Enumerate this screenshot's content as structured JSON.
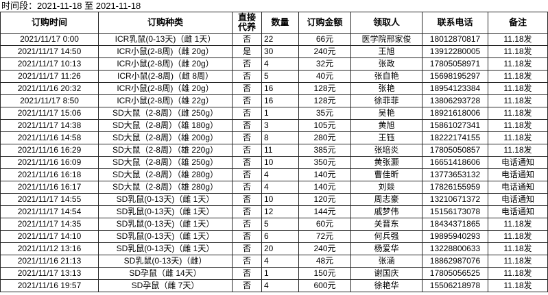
{
  "title": "时间段：2021-11-18 至 2021-11-18",
  "columns": [
    "订购时间",
    "订购种类",
    "直接代养",
    "数量",
    "订购金额",
    "领取人",
    "联系电话",
    "备注"
  ],
  "header_direct_line1": "直接",
  "header_direct_line2": "代养",
  "rows": [
    [
      "2021/11/17 0:00",
      "ICR乳鼠(0-13天)（雌 1天）",
      "否",
      "22",
      "66元",
      "医学院邢家俊",
      "18012870817",
      "11.18发"
    ],
    [
      "2021/11/17 14:50",
      "ICR小鼠(2-8周)（雌 20g）",
      "是",
      "30",
      "240元",
      "王旭",
      "13912280005",
      "11.18发"
    ],
    [
      "2021/11/17 10:13",
      "ICR小鼠(2-8周)（雌 20g）",
      "否",
      "4",
      "32元",
      "张政",
      "17805058971",
      "11.18发"
    ],
    [
      "2021/11/17 11:26",
      "ICR小鼠(2-8周)（雌 8周）",
      "否",
      "5",
      "40元",
      "张自艳",
      "15698195297",
      "11.18发"
    ],
    [
      "2021/11/16 20:32",
      "ICR小鼠(2-8周)（雄 20g）",
      "否",
      "16",
      "128元",
      "张艳",
      "18954123384",
      "11.18发"
    ],
    [
      "2021/11/17 8:50",
      "ICR小鼠(2-8周)（雄 22g）",
      "否",
      "16",
      "128元",
      "徐菲菲",
      "13806293728",
      "11.18发"
    ],
    [
      "2021/11/17 15:06",
      "SD大鼠（2-8周）（雌 250g）",
      "否",
      "1",
      "35元",
      "吴艳",
      "18921618006",
      "11.18发"
    ],
    [
      "2021/11/17 14:38",
      "SD大鼠（2-8周）（雄 180g）",
      "否",
      "3",
      "105元",
      "黄旭",
      "15861027341",
      "11.18发"
    ],
    [
      "2021/11/16 14:58",
      "SD大鼠（2-8周）（雄 200g）",
      "否",
      "8",
      "280元",
      "王钰",
      "18222174155",
      "11.18发"
    ],
    [
      "2021/11/16 16:29",
      "SD大鼠（2-8周）（雄 220g）",
      "否",
      "11",
      "385元",
      "张培炎",
      "17805050857",
      "11.18发"
    ],
    [
      "2021/11/16 16:09",
      "SD大鼠（2-8周）（雄 250g）",
      "否",
      "10",
      "350元",
      "黄张灏",
      "16651418606",
      "电话通知"
    ],
    [
      "2021/11/16 16:18",
      "SD大鼠（2-8周）（雄 280g）",
      "否",
      "4",
      "140元",
      "曹佳昕",
      "13773653132",
      "电话通知"
    ],
    [
      "2021/11/16 16:17",
      "SD大鼠（2-8周）（雄 280g）",
      "否",
      "4",
      "140元",
      "刘燚",
      "17826155959",
      "电话通知"
    ],
    [
      "2021/11/17 14:55",
      "SD乳鼠(0-13天)（雌 1天）",
      "否",
      "10",
      "120元",
      "周志豪",
      "13210671372",
      "电话通知"
    ],
    [
      "2021/11/17 14:54",
      "SD乳鼠(0-13天)（雌 1天）",
      "否",
      "12",
      "144元",
      "戚梦伟",
      "15156173078",
      "电话通知"
    ],
    [
      "2021/11/17 14:35",
      "SD乳鼠(0-13天)（雌 1天）",
      "否",
      "5",
      "60元",
      "关晋东",
      "18434371865",
      "11.18发"
    ],
    [
      "2021/11/17 14:10",
      "SD乳鼠(0-13天)（雌 1天）",
      "否",
      "6",
      "72元",
      "何兵强",
      "19895940293",
      "11.18发"
    ],
    [
      "2021/11/12 13:16",
      "SD乳鼠(0-13天)（雌 1天）",
      "否",
      "20",
      "240元",
      "杨爱华",
      "13228800633",
      "11.18发"
    ],
    [
      "2021/11/16 21:13",
      "SD乳鼠(0-13天)（雌）",
      "否",
      "4",
      "48元",
      "张涵",
      "18862987076",
      "11.18发"
    ],
    [
      "2021/11/17 13:13",
      "SD孕鼠（雌 14天）",
      "否",
      "1",
      "150元",
      "谢国庆",
      "17805056525",
      "11.18发"
    ],
    [
      "2021/11/16 19:57",
      "SD孕鼠（雌 7天）",
      "否",
      "4",
      "600元",
      "徐艳华",
      "15506218978",
      "11.18发"
    ]
  ]
}
